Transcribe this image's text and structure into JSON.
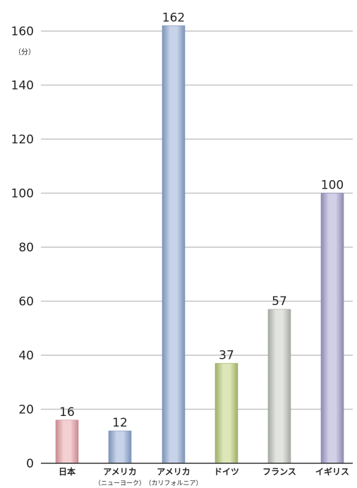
{
  "chart_data": {
    "type": "bar",
    "unit": "（分）",
    "categories": [
      {
        "label": "日本",
        "sublabel": ""
      },
      {
        "label": "アメリカ",
        "sublabel": "（ニューヨーク）"
      },
      {
        "label": "アメリカ",
        "sublabel": "（カリフォルニア）"
      },
      {
        "label": "ドイツ",
        "sublabel": ""
      },
      {
        "label": "フランス",
        "sublabel": ""
      },
      {
        "label": "イギリス",
        "sublabel": ""
      }
    ],
    "values": [
      16,
      12,
      162,
      37,
      57,
      100
    ],
    "value_labels": [
      "16",
      "12",
      "162",
      "37",
      "57",
      "100"
    ],
    "ylim": [
      0,
      160
    ],
    "yticks": [
      0,
      20,
      40,
      60,
      80,
      100,
      120,
      140,
      160
    ],
    "ytick_labels": [
      "0",
      "20",
      "40",
      "60",
      "80",
      "100",
      "120",
      "140",
      "160"
    ],
    "grid": true,
    "colors": [
      {
        "light": "#f4d0d2",
        "dark": "#c98a90"
      },
      {
        "light": "#c6d3e8",
        "dark": "#7d93b8"
      },
      {
        "light": "#c6d3e8",
        "dark": "#7d93b8"
      },
      {
        "light": "#dde6b6",
        "dark": "#9fae6a"
      },
      {
        "light": "#e2e4e0",
        "dark": "#a6aaa4"
      },
      {
        "light": "#d2d0e6",
        "dark": "#8d89b4"
      }
    ]
  }
}
